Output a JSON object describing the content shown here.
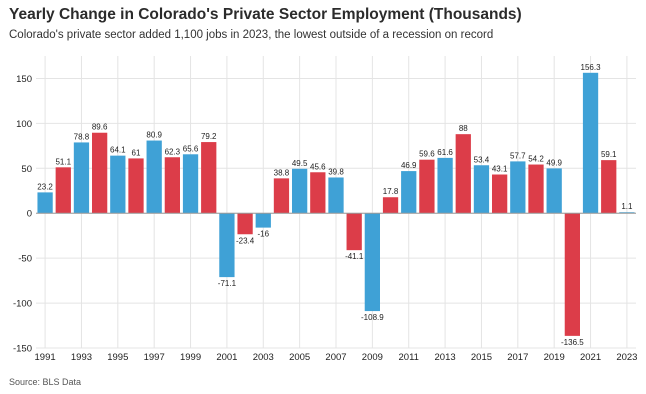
{
  "title": "Yearly Change in Colorado's Private Sector Employment (Thousands)",
  "subtitle": "Colorado's private sector added 1,100 jobs in 2023, the lowest outside of a recession on record",
  "source": "Source: BLS Data",
  "colors": {
    "blue": "#3fa1d6",
    "red": "#dc3d49",
    "grid": "#e4e4e4",
    "zero": "#9a9a9a"
  },
  "chart_data": {
    "type": "bar",
    "title": "Yearly Change in Colorado's Private Sector Employment (Thousands)",
    "xlabel": "",
    "ylabel": "",
    "ylim": [
      -150,
      175
    ],
    "yticks": [
      150,
      100,
      50,
      0,
      -50,
      -100,
      -150
    ],
    "grid": true,
    "legend": "none",
    "categories": [
      "1991",
      "1992",
      "1993",
      "1994",
      "1995",
      "1996",
      "1997",
      "1998",
      "1999",
      "2000",
      "2001",
      "2002",
      "2003",
      "2004",
      "2005",
      "2006",
      "2007",
      "2008",
      "2009",
      "2010",
      "2011",
      "2012",
      "2013",
      "2014",
      "2015",
      "2016",
      "2017",
      "2018",
      "2019",
      "2020",
      "2021",
      "2022",
      "2023"
    ],
    "xtick_labels": [
      "1991",
      "1993",
      "1995",
      "1997",
      "1999",
      "2001",
      "2003",
      "2005",
      "2007",
      "2009",
      "2011",
      "2013",
      "2015",
      "2017",
      "2019",
      "2021",
      "2023"
    ],
    "values": [
      23.2,
      51.1,
      78.8,
      89.6,
      64.1,
      61,
      80.9,
      62.3,
      65.6,
      79.2,
      -71.1,
      -23.4,
      -16,
      38.8,
      49.5,
      45.6,
      39.8,
      -41.1,
      -108.9,
      17.8,
      46.9,
      59.6,
      61.6,
      88,
      53.4,
      43.1,
      57.7,
      54.2,
      49.9,
      -136.5,
      156.3,
      59.1,
      1.1
    ],
    "data_labels": [
      "23.2",
      "51.1",
      "78.8",
      "89.6",
      "64.1",
      "61",
      "80.9",
      "62.3",
      "65.6",
      "79.2",
      "-71.1",
      "-23.4",
      "-16",
      "38.8",
      "49.5",
      "45.6",
      "39.8",
      "-41.1",
      "-108.9",
      "17.8",
      "46.9",
      "59.6",
      "61.6",
      "88",
      "53.4",
      "43.1",
      "57.7",
      "54.2",
      "49.9",
      "-136.5",
      "156.3",
      "59.1",
      "1.1"
    ],
    "bar_colors": [
      "blue",
      "red",
      "blue",
      "red",
      "blue",
      "red",
      "blue",
      "red",
      "blue",
      "red",
      "blue",
      "red",
      "blue",
      "red",
      "blue",
      "red",
      "blue",
      "red",
      "blue",
      "red",
      "blue",
      "red",
      "blue",
      "red",
      "blue",
      "red",
      "blue",
      "red",
      "blue",
      "red",
      "blue",
      "red",
      "blue"
    ]
  }
}
